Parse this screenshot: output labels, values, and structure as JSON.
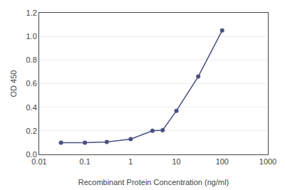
{
  "chart_data": {
    "type": "line",
    "x": [
      0.03,
      0.1,
      0.3,
      1.0,
      3.0,
      5.0,
      10.0,
      30.0,
      100.0
    ],
    "values": [
      0.1,
      0.1,
      0.105,
      0.13,
      0.2,
      0.205,
      0.37,
      0.66,
      1.05
    ],
    "color": "#4a5080",
    "marker": "circle",
    "xlabel": "Recombinant Protein Concentration (ng/ml)",
    "ylabel": "OD 450",
    "log": "x",
    "xlim": [
      0.01,
      1000
    ],
    "ylim": [
      0,
      1.2
    ],
    "xticks": [
      0.01,
      0.1,
      1,
      10,
      100,
      1000
    ],
    "yticks": [
      {
        "value": 0,
        "label": "0.0"
      },
      0.2,
      0.4,
      0.6,
      0.8,
      {
        "value": 1.0,
        "label": "1.0"
      },
      1.2
    ],
    "grid": "y"
  }
}
